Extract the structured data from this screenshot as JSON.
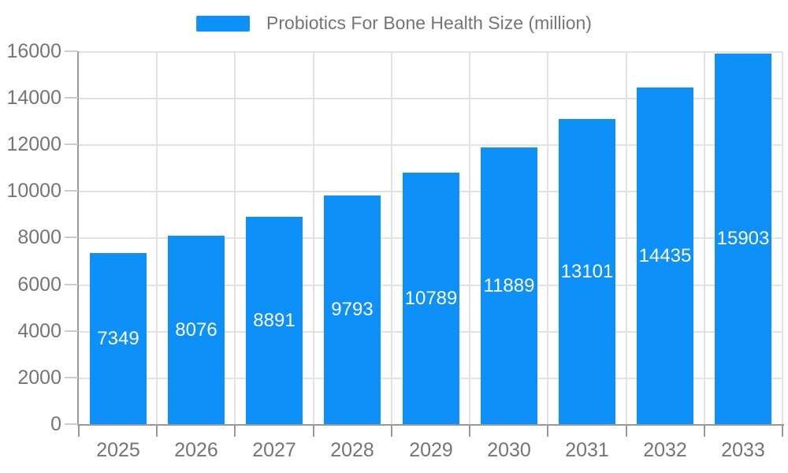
{
  "legend": {
    "label": "Probiotics For Bone Health Size (million)"
  },
  "chart_data": {
    "type": "bar",
    "title": "Probiotics For Bone Health Size (million)",
    "categories": [
      "2025",
      "2026",
      "2027",
      "2028",
      "2029",
      "2030",
      "2031",
      "2032",
      "2033"
    ],
    "values": [
      7349,
      8076,
      8891,
      9793,
      10789,
      11889,
      13101,
      14435,
      15903
    ],
    "xlabel": "",
    "ylabel": "",
    "ylim": [
      0,
      16000
    ],
    "ytick_step": 2000,
    "grid": true,
    "legend_position": "top-center",
    "value_labels": "inside-center-white",
    "colors": {
      "bar": "#0e90f9",
      "gridline": "#e2e2e2",
      "axis_line": "#999999",
      "y_tick": "#cccccc",
      "axis_text": "#757575",
      "value_label_text": "#ffffff"
    }
  }
}
